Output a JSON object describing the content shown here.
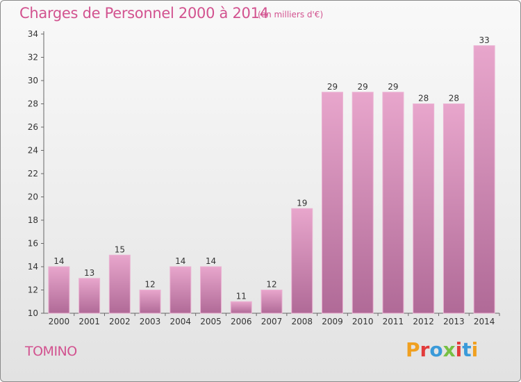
{
  "header": {
    "title": "Charges de Personnel 2000 à 2014",
    "unit": "(en milliers d'€)"
  },
  "footer": {
    "commune": "TOMINO",
    "brand": [
      "P",
      "r",
      "o",
      "x",
      "i",
      "t",
      "i"
    ]
  },
  "colors": {
    "title": "#d2528f",
    "bar_top": "#e8a6cc",
    "bar_bottom": "#b06a97",
    "bar_edge": "#ebb3d3"
  },
  "chart_data": {
    "type": "bar",
    "categories": [
      "2000",
      "2001",
      "2002",
      "2003",
      "2004",
      "2005",
      "2006",
      "2007",
      "2008",
      "2009",
      "2010",
      "2011",
      "2012",
      "2013",
      "2014"
    ],
    "values": [
      14,
      13,
      15,
      12,
      14,
      14,
      11,
      12,
      19,
      29,
      29,
      29,
      28,
      28,
      33
    ],
    "ylim": [
      10,
      34
    ],
    "yticks": [
      10,
      12,
      14,
      16,
      18,
      20,
      22,
      24,
      26,
      28,
      30,
      32,
      34
    ],
    "grid": false
  }
}
